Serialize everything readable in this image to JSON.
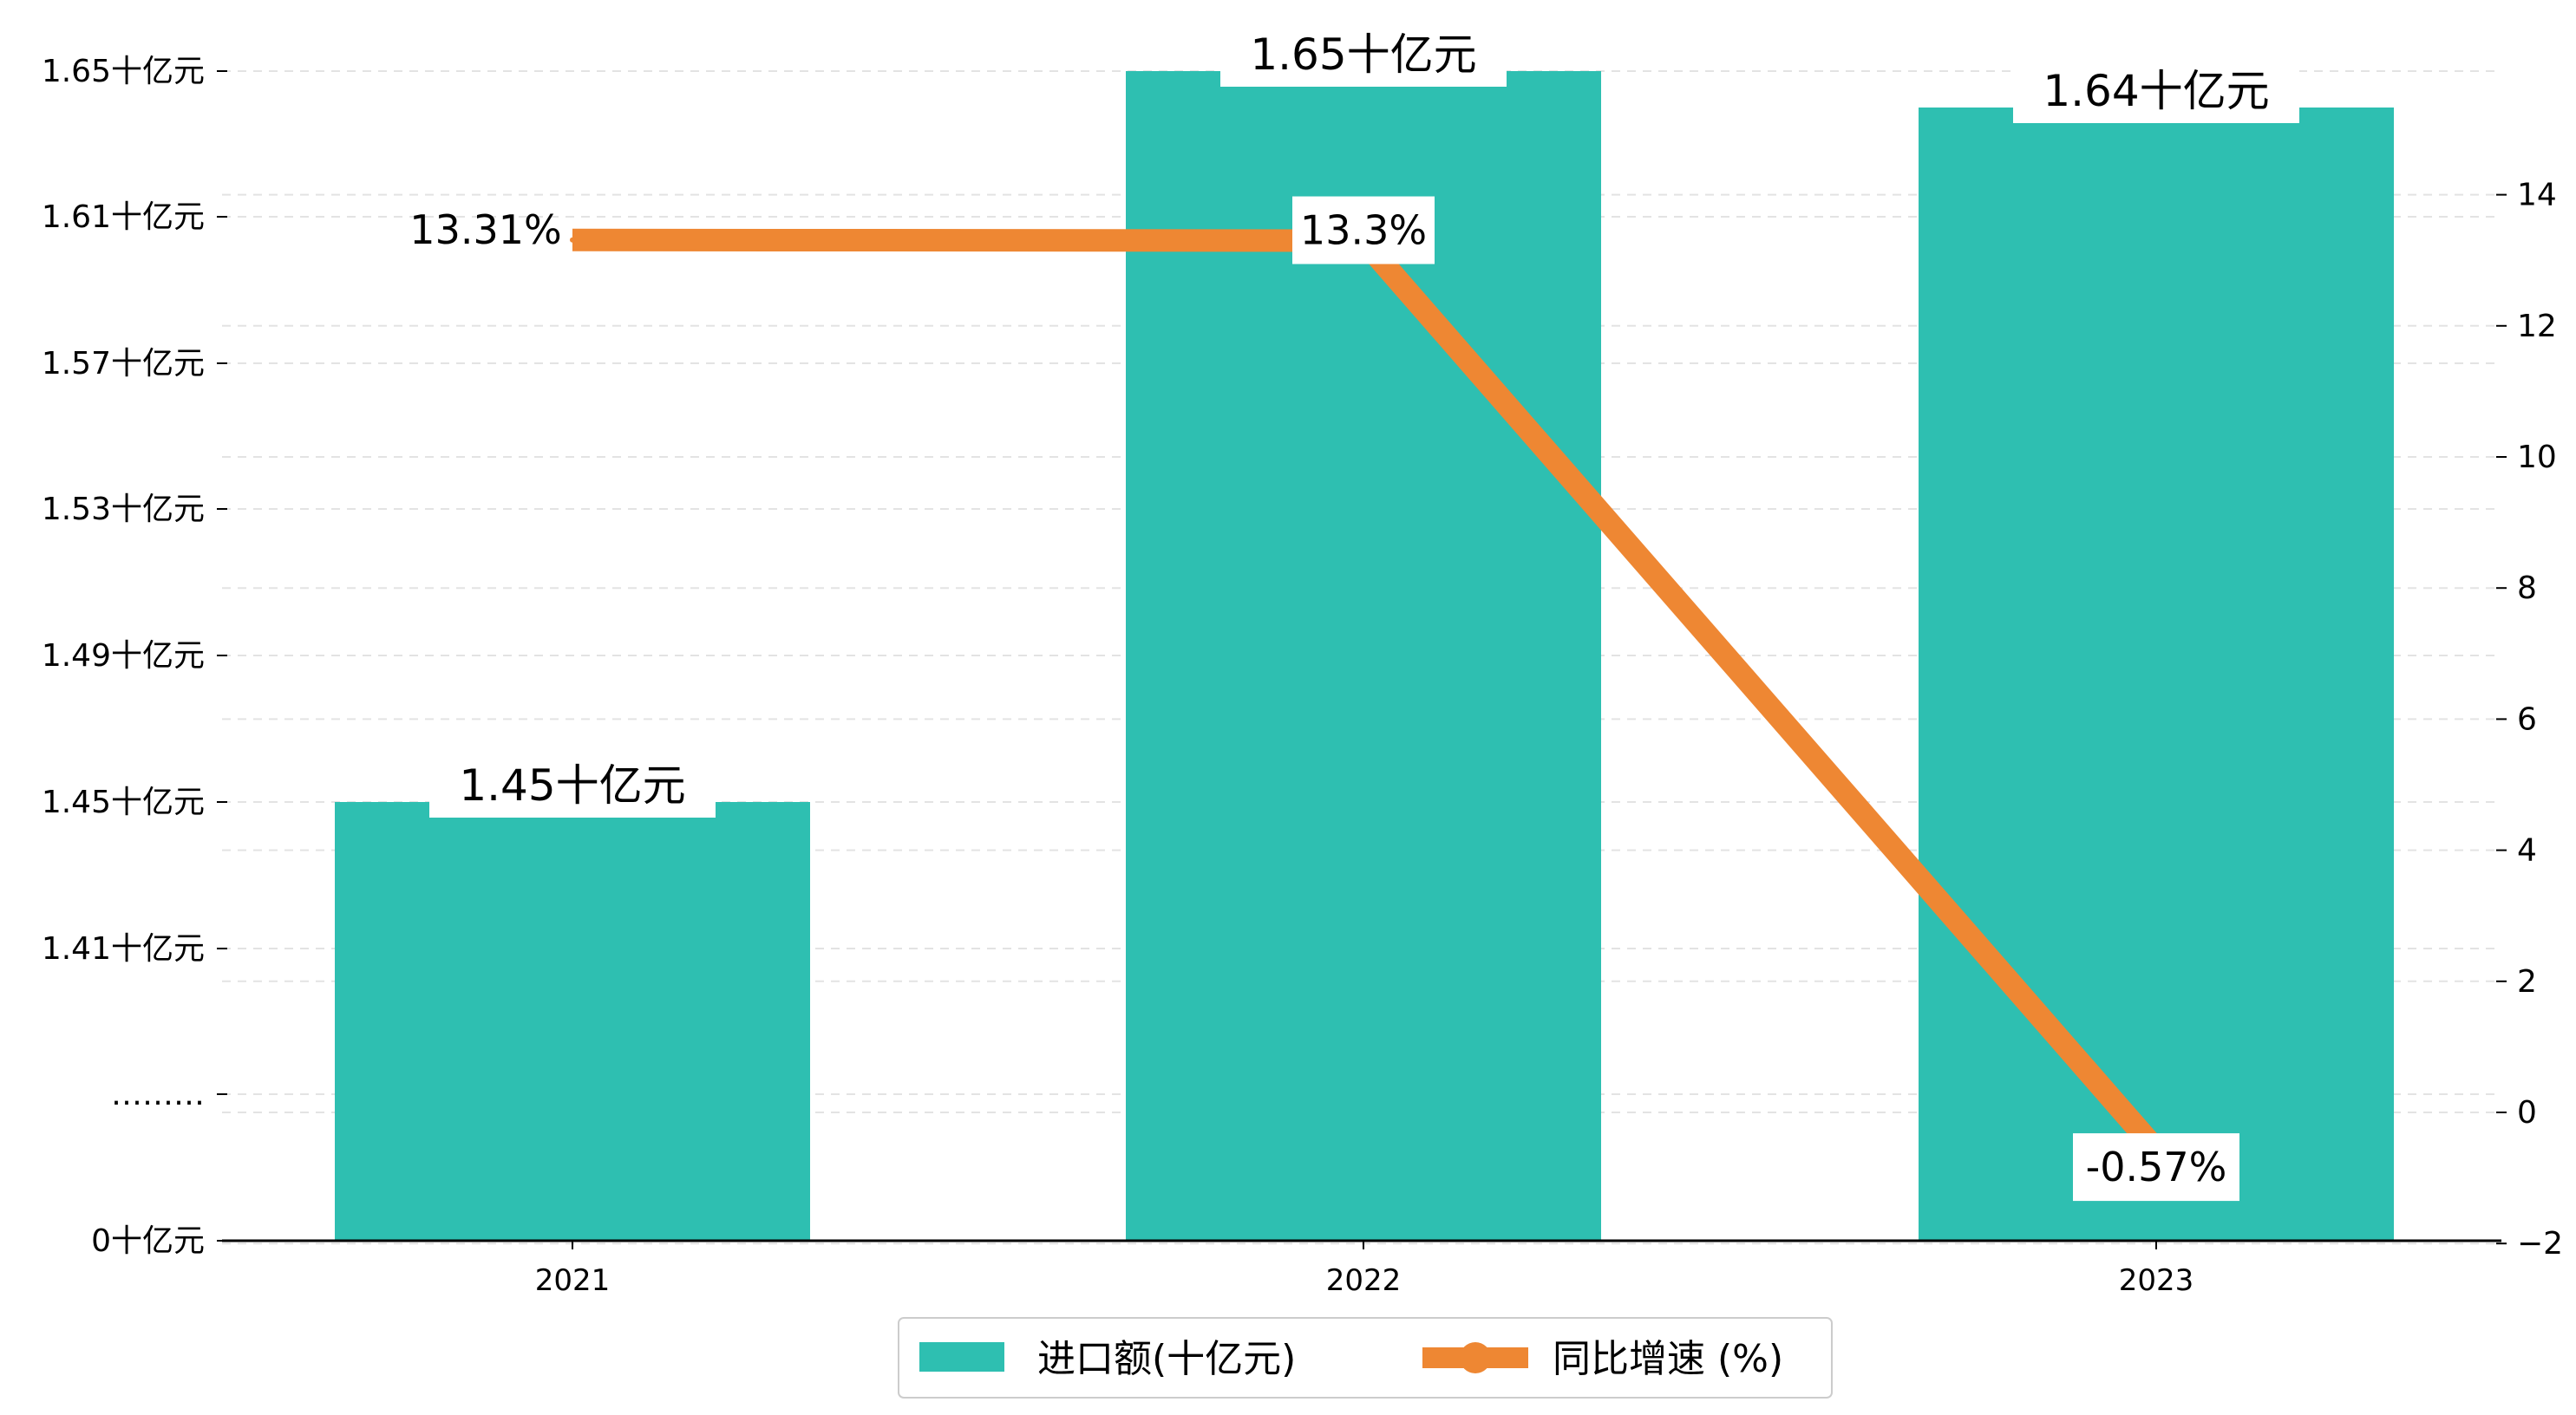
{
  "chart_data": {
    "type": "bar",
    "categories": [
      "2021",
      "2022",
      "2023"
    ],
    "series": [
      {
        "name": "进口额(十亿元)",
        "type": "bar",
        "axis": "left",
        "values": [
          1.45,
          1.65,
          1.64
        ],
        "labels": [
          "1.45十亿元",
          "1.65十亿元",
          "1.64十亿元"
        ],
        "color": "#2ebfb1"
      },
      {
        "name": "同比增速 (%)",
        "type": "line",
        "axis": "right",
        "values": [
          13.31,
          13.3,
          -0.57
        ],
        "labels": [
          "13.31%",
          "13.3%",
          "-0.57%"
        ],
        "color": "#ee8733"
      }
    ],
    "left_axis": {
      "tick_values": [
        0,
        1.37,
        1.41,
        1.45,
        1.49,
        1.53,
        1.57,
        1.61,
        1.65
      ],
      "tick_labels": [
        "0十亿元",
        "………",
        "1.41十亿元",
        "1.45十亿元",
        "1.49十亿元",
        "1.53十亿元",
        "1.57十亿元",
        "1.61十亿元",
        "1.65十亿元"
      ],
      "broken_axis": true
    },
    "right_axis": {
      "range": [
        -2.5,
        15.5
      ],
      "tick_values": [
        -2,
        0,
        2,
        4,
        6,
        8,
        10,
        12,
        14
      ],
      "tick_labels": [
        "−2",
        "0",
        "2",
        "4",
        "6",
        "8",
        "10",
        "12",
        "14"
      ]
    },
    "grid": true,
    "legend_position": "bottom"
  }
}
